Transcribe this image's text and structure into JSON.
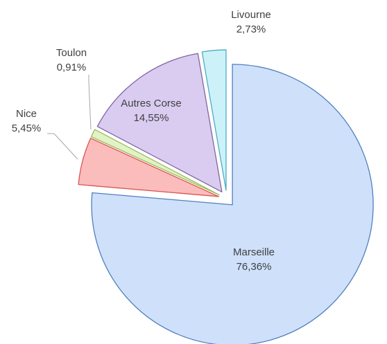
{
  "chart_data": {
    "type": "pie",
    "categories": [
      "Marseille",
      "Nice",
      "Toulon",
      "Autres Corse",
      "Livourne"
    ],
    "values": [
      76.36,
      5.45,
      0.91,
      14.55,
      2.73
    ],
    "value_labels": [
      "76,36%",
      "5,45%",
      "0,91%",
      "14,55%",
      "2,73%"
    ],
    "colors": [
      "#cfe0fb",
      "#fbbcbc",
      "#e2f2c6",
      "#d9ccf0",
      "#cdf1f8"
    ],
    "edge_colors": [
      "#4f7fbd",
      "#d9534f",
      "#9bbb59",
      "#8064a2",
      "#4bacc6"
    ]
  }
}
